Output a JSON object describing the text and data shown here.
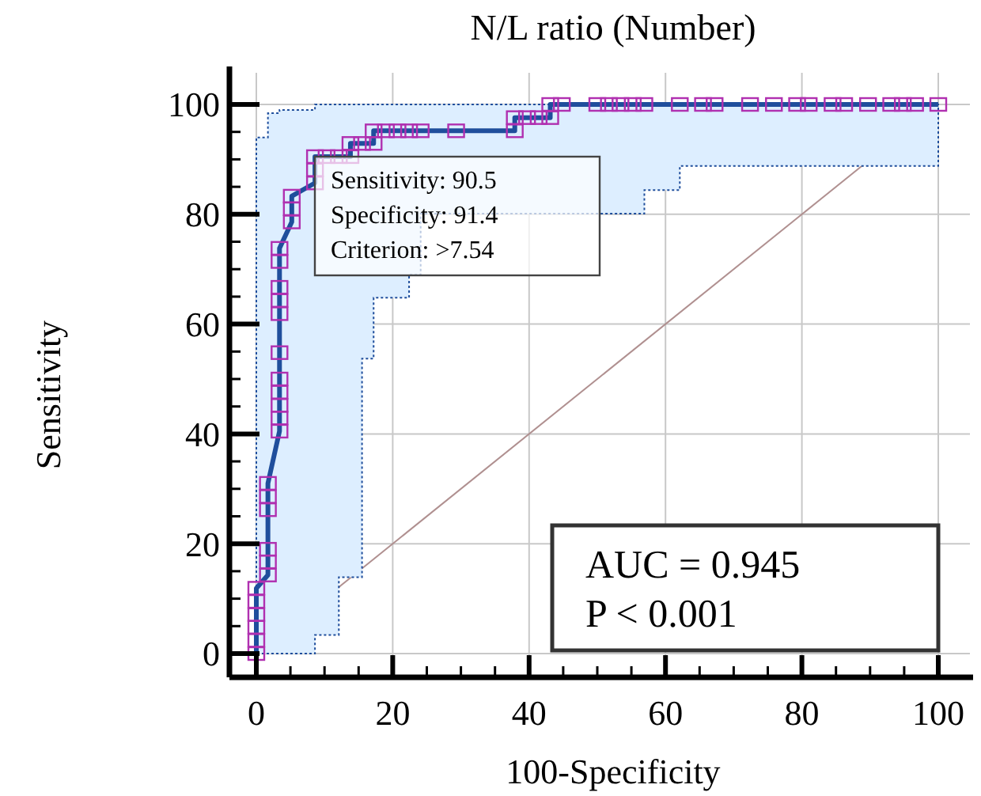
{
  "chart_data": {
    "type": "line",
    "title": "N/L ratio (Number)",
    "xlabel": "100-Specificity",
    "ylabel": "Sensitivity",
    "xlim": [
      0,
      100
    ],
    "ylim": [
      0,
      100
    ],
    "xticks": [
      0,
      {
        "value": 5,
        "label": null
      },
      {
        "value": 10,
        "label": null
      },
      {
        "value": 15,
        "label": null
      },
      20,
      {
        "value": 25,
        "label": null
      },
      {
        "value": 30,
        "label": null
      },
      {
        "value": 35,
        "label": null
      },
      40,
      {
        "value": 45,
        "label": null
      },
      {
        "value": 50,
        "label": null
      },
      {
        "value": 55,
        "label": null
      },
      60,
      {
        "value": 65,
        "label": null
      },
      {
        "value": 70,
        "label": null
      },
      {
        "value": 75,
        "label": null
      },
      80,
      {
        "value": 85,
        "label": null
      },
      {
        "value": 90,
        "label": null
      },
      {
        "value": 95,
        "label": null
      },
      100
    ],
    "yticks": [
      0,
      {
        "value": 5,
        "label": null
      },
      {
        "value": 10,
        "label": null
      },
      {
        "value": 15,
        "label": null
      },
      20,
      {
        "value": 25,
        "label": null
      },
      {
        "value": 30,
        "label": null
      },
      {
        "value": 35,
        "label": null
      },
      40,
      {
        "value": 45,
        "label": null
      },
      {
        "value": 50,
        "label": null
      },
      {
        "value": 55,
        "label": null
      },
      60,
      {
        "value": 65,
        "label": null
      },
      {
        "value": 70,
        "label": null
      },
      {
        "value": 75,
        "label": null
      },
      80,
      {
        "value": 85,
        "label": null
      },
      {
        "value": 90,
        "label": null
      },
      {
        "value": 95,
        "label": null
      },
      100
    ],
    "grid": true,
    "series": [
      {
        "color": "#1f4e9c",
        "marker": "square",
        "x": [
          0,
          0,
          0,
          0,
          0,
          0,
          1.7,
          1.7,
          1.7,
          1.7,
          1.7,
          1.7,
          3.4,
          3.4,
          3.4,
          3.4,
          3.4,
          3.4,
          3.4,
          3.4,
          3.4,
          3.4,
          3.4,
          5.2,
          5.2,
          5.2,
          8.6,
          8.6,
          8.6,
          10.3,
          12.1,
          13.8,
          13.8,
          15.5,
          17.2,
          17.2,
          19.0,
          20.7,
          22.4,
          24.1,
          29.3,
          37.9,
          37.9,
          39.7,
          41.4,
          43.1,
          43.1,
          44.8,
          50.0,
          51.7,
          53.4,
          55.2,
          56.9,
          62.1,
          65.5,
          67.2,
          72.4,
          75.9,
          79.3,
          81.0,
          84.5,
          86.2,
          89.7,
          93.1,
          94.8,
          96.6,
          100
        ],
        "values": [
          0,
          2.4,
          4.8,
          7.1,
          9.5,
          11.9,
          14.3,
          16.7,
          19.0,
          26.2,
          28.6,
          31.0,
          40.5,
          42.9,
          45.2,
          47.6,
          50.0,
          54.8,
          61.9,
          64.3,
          66.7,
          71.4,
          73.8,
          78.6,
          81.0,
          83.3,
          85.7,
          88.1,
          90.5,
          90.5,
          90.5,
          90.5,
          92.9,
          92.9,
          92.9,
          95.2,
          95.2,
          95.2,
          95.2,
          95.2,
          95.2,
          95.2,
          97.6,
          97.6,
          97.6,
          97.6,
          100,
          100,
          100,
          100,
          100,
          100,
          100,
          100,
          100,
          100,
          100,
          100,
          100,
          100,
          100,
          100,
          100,
          100,
          100,
          100,
          100
        ],
        "lower": [
          0,
          0,
          0,
          0,
          0,
          0,
          0,
          0,
          0,
          0,
          0,
          0,
          0,
          0,
          0,
          0,
          0,
          0,
          0,
          0,
          0,
          0,
          0,
          0,
          0,
          0,
          3.4,
          3.4,
          3.4,
          3.4,
          13.9,
          13.9,
          13.9,
          53.7,
          64.8,
          64.8,
          64.8,
          64.8,
          69,
          80.1,
          80.1,
          80.1,
          80.1,
          80.1,
          80.1,
          80.1,
          80.1,
          80.1,
          80.1,
          80.1,
          80.1,
          80.1,
          84.4,
          88.8,
          88.8,
          88.8,
          88.8,
          88.8,
          88.8,
          88.8,
          88.8,
          88.8,
          88.8,
          88.8,
          88.8,
          88.8,
          88.8
        ],
        "upper": [
          0,
          94,
          94,
          94,
          94,
          94,
          98.4,
          98.4,
          98.4,
          98.4,
          98.4,
          98.4,
          99,
          99,
          99,
          99,
          99,
          99,
          99,
          99,
          99,
          99,
          99,
          99,
          99,
          99,
          100,
          100,
          100,
          100,
          100,
          100,
          100,
          100,
          100,
          100,
          100,
          100,
          100,
          100,
          100,
          100,
          100,
          100,
          100,
          100,
          100,
          100,
          100,
          100,
          100,
          100,
          100,
          100,
          100,
          100,
          100,
          100,
          100,
          100,
          100,
          100,
          100,
          100,
          100,
          100,
          100
        ]
      },
      {
        "color": "#b09090",
        "marker": "none",
        "x": [
          0,
          100
        ],
        "values": [
          0,
          100
        ]
      }
    ],
    "annotations": [
      "Sensitivity: 90.5",
      "Specificity: 91.4",
      "Criterion: >7.54",
      "AUC = 0.945",
      "P < 0.001"
    ]
  }
}
